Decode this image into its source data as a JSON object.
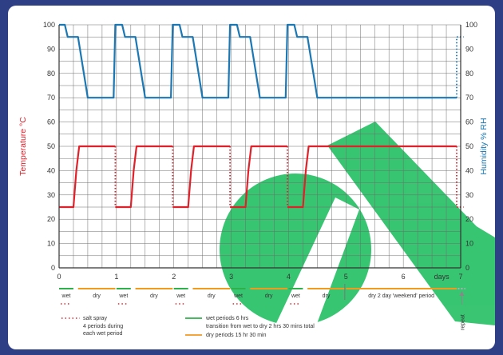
{
  "colors": {
    "background": "#2f3f86",
    "humidity": "#1b78b4",
    "temperature": "#e0212a",
    "wet": "#2eb14a",
    "dry": "#f39a1e",
    "watermark": "#2ec26a"
  },
  "chart_data": {
    "type": "line",
    "x_unit_label": "days",
    "xlim": [
      0,
      7
    ],
    "x_ticks": [
      "0",
      "1",
      "2",
      "3",
      "4",
      "5",
      "6",
      "7"
    ],
    "ylabel_left": "Temperature °C",
    "ylabel_right": "Humidity % RH",
    "ylim": [
      0,
      100
    ],
    "y_ticks": [
      "0",
      "10",
      "20",
      "30",
      "40",
      "50",
      "60",
      "70",
      "80",
      "90",
      "100"
    ],
    "grid": true,
    "series": [
      {
        "name": "humidity",
        "axis": "right",
        "segments": [
          {
            "style": "solid",
            "x": [
              0,
              0.1,
              0.15,
              0.17,
              0.27,
              0.33,
              0.5,
              0.8,
              0.95,
              0.98,
              1.1,
              1.15,
              1.17,
              1.27,
              1.33,
              1.5,
              1.8,
              1.95,
              1.98,
              2.1,
              2.15,
              2.17,
              2.27,
              2.33,
              2.5,
              2.8,
              2.95,
              2.98,
              3.1,
              3.15,
              3.17,
              3.27,
              3.33,
              3.5,
              3.8,
              3.95,
              3.98,
              4.1,
              4.15,
              4.17,
              4.27,
              4.33,
              4.5,
              5.0,
              6.0,
              6.93
            ],
            "y": [
              100,
              100,
              95,
              95,
              95,
              95,
              70,
              70,
              70,
              100,
              100,
              95,
              95,
              95,
              95,
              70,
              70,
              70,
              100,
              100,
              95,
              95,
              95,
              95,
              70,
              70,
              70,
              100,
              100,
              95,
              95,
              95,
              95,
              70,
              70,
              70,
              100,
              100,
              95,
              95,
              95,
              95,
              70,
              70,
              70,
              70
            ]
          },
          {
            "style": "dotted",
            "x": [
              6.93,
              6.93,
              7.05
            ],
            "y": [
              70,
              95,
              95
            ]
          }
        ]
      },
      {
        "name": "temperature",
        "axis": "left",
        "segments": [
          {
            "style": "solid",
            "x": [
              0,
              0.25,
              0.3,
              0.35,
              0.6,
              0.98
            ],
            "y": [
              25,
              25,
              40,
              50,
              50,
              50
            ]
          },
          {
            "style": "dotted",
            "x": [
              0.98,
              0.98
            ],
            "y": [
              50,
              25
            ]
          },
          {
            "style": "solid",
            "x": [
              0.98,
              1.25,
              1.3,
              1.35,
              1.6,
              1.98
            ],
            "y": [
              25,
              25,
              40,
              50,
              50,
              50
            ]
          },
          {
            "style": "dotted",
            "x": [
              1.98,
              1.98
            ],
            "y": [
              50,
              25
            ]
          },
          {
            "style": "solid",
            "x": [
              1.98,
              2.25,
              2.3,
              2.35,
              2.6,
              2.98
            ],
            "y": [
              25,
              25,
              40,
              50,
              50,
              50
            ]
          },
          {
            "style": "dotted",
            "x": [
              2.98,
              2.98
            ],
            "y": [
              50,
              25
            ]
          },
          {
            "style": "solid",
            "x": [
              2.98,
              3.25,
              3.3,
              3.35,
              3.6,
              3.98
            ],
            "y": [
              25,
              25,
              40,
              50,
              50,
              50
            ]
          },
          {
            "style": "dotted",
            "x": [
              3.98,
              3.98
            ],
            "y": [
              50,
              25
            ]
          },
          {
            "style": "solid",
            "x": [
              3.98,
              4.25,
              4.3,
              4.35,
              4.6,
              5.0,
              6.0,
              6.93
            ],
            "y": [
              25,
              25,
              40,
              50,
              50,
              50,
              50,
              50
            ]
          },
          {
            "style": "dotted",
            "x": [
              6.93,
              6.93,
              7.05
            ],
            "y": [
              50,
              25,
              25
            ]
          }
        ]
      }
    ]
  },
  "timeline": {
    "segments": [
      {
        "type": "wet",
        "label": "wet",
        "x0": 0.0,
        "x1": 0.25,
        "spray": true
      },
      {
        "type": "dry",
        "label": "dry",
        "x0": 0.33,
        "x1": 0.98
      },
      {
        "type": "wet",
        "label": "wet",
        "x0": 1.0,
        "x1": 1.25,
        "spray": true
      },
      {
        "type": "dry",
        "label": "dry",
        "x0": 1.33,
        "x1": 1.98
      },
      {
        "type": "wet",
        "label": "wet",
        "x0": 2.0,
        "x1": 2.25,
        "spray": true
      },
      {
        "type": "dry",
        "label": "dry",
        "x0": 2.33,
        "x1": 2.98
      },
      {
        "type": "wet",
        "label": "wet",
        "x0": 3.0,
        "x1": 3.25,
        "spray": true
      },
      {
        "type": "dry",
        "label": "dry",
        "x0": 3.33,
        "x1": 3.98
      },
      {
        "type": "wet",
        "label": "wet",
        "x0": 4.0,
        "x1": 4.25,
        "spray": true
      },
      {
        "type": "dry",
        "label": "dry",
        "x0": 4.33,
        "x1": 4.98
      },
      {
        "type": "dry",
        "label": "dry 2 day 'weekend' period",
        "x0": 5.0,
        "x1": 6.93
      },
      {
        "type": "repeat",
        "label": "",
        "x0": 6.95,
        "x1": 7.08
      }
    ],
    "repeat_label": "repeat"
  },
  "legend": {
    "salt_spray": "salt spray",
    "salt_spray_detail": [
      "4 periods during",
      "each wet period"
    ],
    "wet": "wet periods 6 hrs",
    "transition": "transition from wet to dry 2 hrs 30 mins total",
    "dry": "dry periods 15 hr 30 min"
  }
}
